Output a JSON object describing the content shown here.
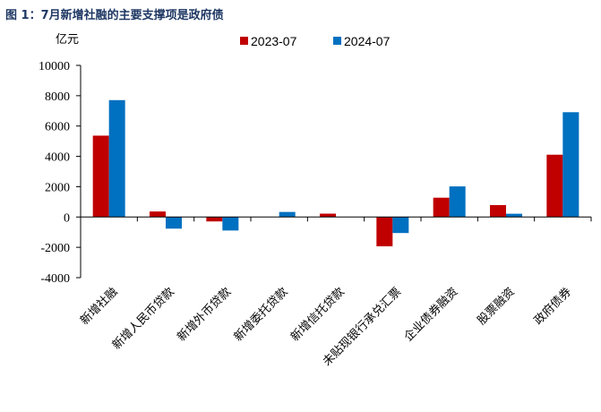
{
  "figure_title": "图 1：7月新增社融的主要支撑项是政府债",
  "chart_data": {
    "type": "bar",
    "title": "",
    "unit_label": "亿元",
    "categories": [
      "新增社融",
      "新增人民币贷款",
      "新增外币贷款",
      "新增委托贷款",
      "新增信托贷款",
      "未贴现银行承兑汇票",
      "企业债券融资",
      "股票融资",
      "政府债券"
    ],
    "series": [
      {
        "name": "2023-07",
        "color": "#c00000",
        "values": [
          5366,
          364,
          -292,
          0,
          221,
          -1932,
          1274,
          788,
          4109
        ]
      },
      {
        "name": "2024-07",
        "color": "#0070c0",
        "values": [
          7708,
          -766,
          -890,
          333,
          0,
          -1057,
          2019,
          216,
          6911
        ]
      }
    ],
    "ylim": [
      -4000,
      10000
    ],
    "yticks": [
      -4000,
      -2000,
      0,
      2000,
      4000,
      6000,
      8000,
      10000
    ],
    "legend_position": "top-right",
    "grid": false
  }
}
